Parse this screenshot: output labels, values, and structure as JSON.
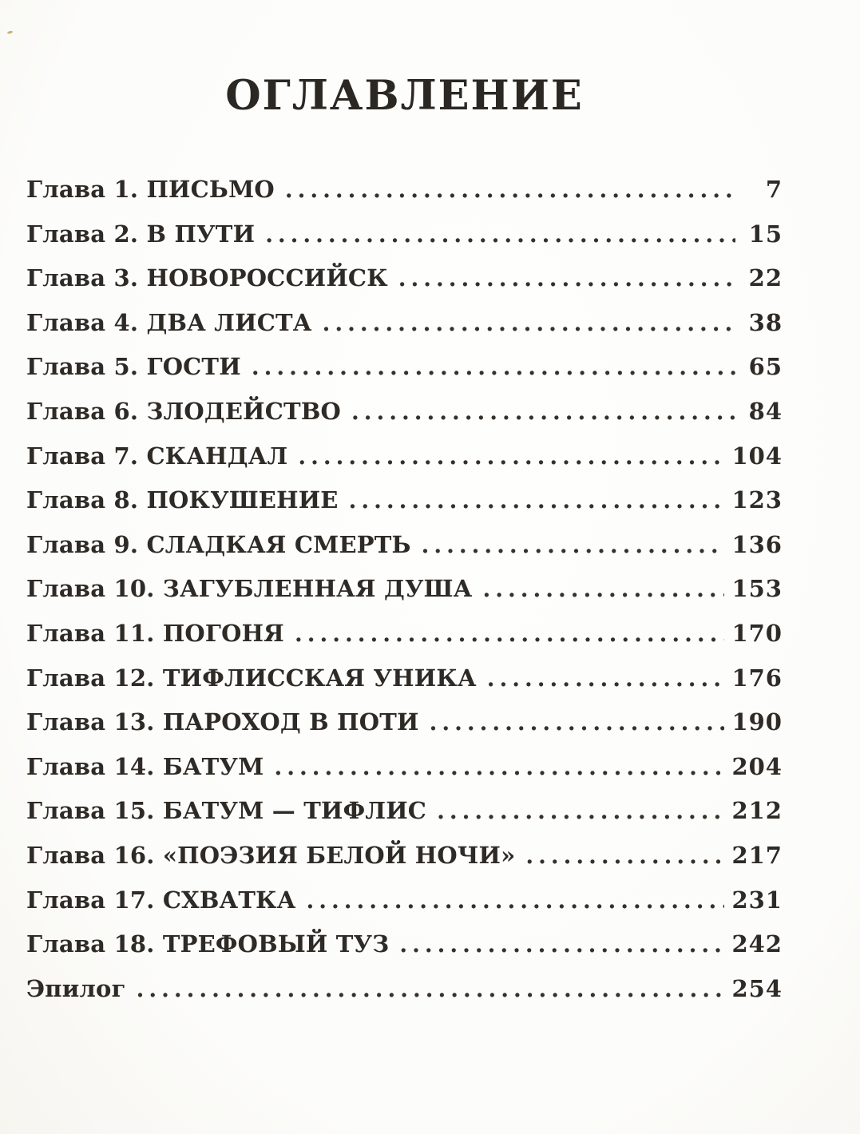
{
  "page": {
    "title": "ОГЛАВЛЕНИЕ"
  },
  "colors": {
    "ink": "#2e2a25",
    "paper": "#fcfcfa"
  },
  "toc": {
    "entries": [
      {
        "label": "Глава 1. ПИСЬМО",
        "page": "7"
      },
      {
        "label": "Глава 2. В ПУТИ",
        "page": "15"
      },
      {
        "label": "Глава 3. НОВОРОССИЙСК",
        "page": "22"
      },
      {
        "label": "Глава 4. ДВА ЛИСТА",
        "page": "38"
      },
      {
        "label": "Глава 5. ГОСТИ",
        "page": "65"
      },
      {
        "label": "Глава 6. ЗЛОДЕЙСТВО",
        "page": "84"
      },
      {
        "label": "Глава 7. СКАНДАЛ",
        "page": "104"
      },
      {
        "label": "Глава 8. ПОКУШЕНИЕ",
        "page": "123"
      },
      {
        "label": "Глава 9. СЛАДКАЯ СМЕРТЬ",
        "page": "136"
      },
      {
        "label": "Глава 10. ЗАГУБЛЕННАЯ ДУША",
        "page": "153"
      },
      {
        "label": "Глава 11. ПОГОНЯ",
        "page": "170"
      },
      {
        "label": "Глава 12. ТИФЛИССКАЯ УНИКА",
        "page": "176"
      },
      {
        "label": "Глава 13. ПАРОХОД В ПОТИ",
        "page": "190"
      },
      {
        "label": "Глава 14. БАТУМ",
        "page": "204"
      },
      {
        "label": "Глава 15. БАТУМ — ТИФЛИС",
        "page": "212"
      },
      {
        "label": "Глава 16. «ПОЭЗИЯ БЕЛОЙ НОЧИ»",
        "page": "217"
      },
      {
        "label": "Глава 17. СХВАТКА",
        "page": "231"
      },
      {
        "label": "Глава 18. ТРЕФОВЫЙ ТУЗ",
        "page": "242"
      },
      {
        "label": "Эпилог",
        "page": "254"
      }
    ]
  }
}
